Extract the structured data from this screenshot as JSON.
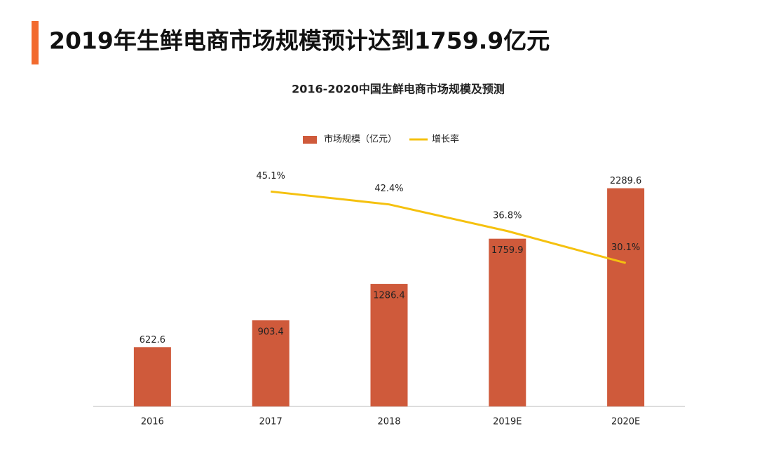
{
  "page_title": "2019年生鲜电商市场规模预计达到1759.9亿元",
  "chart_data": {
    "type": "bar-line",
    "title": "2016-2020中国生鲜电商市场规模及预测",
    "categories": [
      "2016",
      "2017",
      "2018",
      "2019E",
      "2020E"
    ],
    "series": [
      {
        "name": "市场规模（亿元）",
        "type": "bar",
        "color": "#cf5a3b",
        "values": [
          622.6,
          903.4,
          1286.4,
          1759.9,
          2289.6
        ]
      },
      {
        "name": "增长率",
        "type": "line",
        "axis": "y2",
        "color": "#f5c10f",
        "values": [
          null,
          45.1,
          42.4,
          36.8,
          30.1
        ],
        "value_labels": [
          null,
          "45.1%",
          "42.4%",
          "36.8%",
          "30.1%"
        ]
      }
    ],
    "ylim": [
      0,
      2500
    ],
    "y2lim": [
      0,
      50
    ],
    "legend": "top"
  }
}
